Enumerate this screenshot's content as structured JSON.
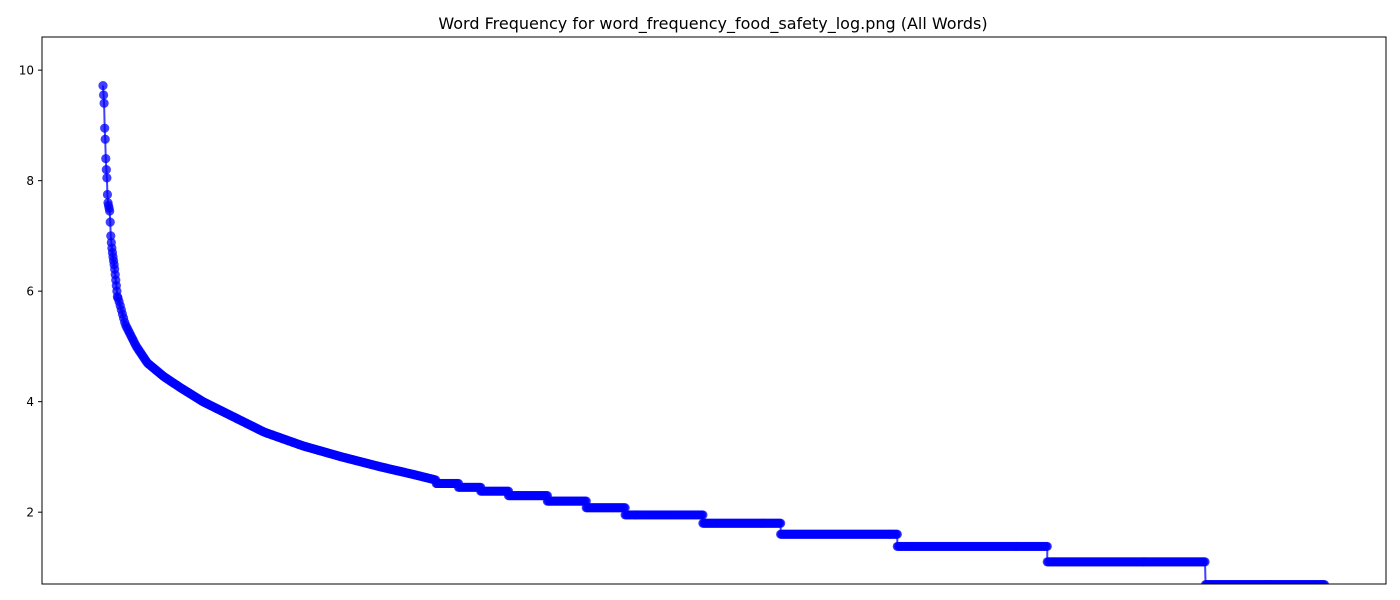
{
  "chart_data": {
    "type": "line",
    "title": "Word Frequency for word_frequency_food_safety_log.png (All Words)",
    "xlabel": "",
    "ylabel": "",
    "ylim": [
      0.7,
      10.6
    ],
    "yticks": [
      2,
      4,
      6,
      8,
      10
    ],
    "x_ticks_shown": false,
    "grid": false,
    "legend": "none",
    "marker": "circle",
    "color": "#0000ff",
    "series": [
      {
        "x_range": [
          0,
          2200
        ],
        "note_for_reading": "",
        "head_values": [
          9.72,
          9.55,
          9.4,
          8.95,
          8.75,
          8.4,
          8.2,
          8.05,
          7.75,
          7.6,
          7.55,
          7.5,
          7.45,
          7.25,
          7.0,
          6.88,
          6.78,
          6.7,
          6.62,
          6.55,
          6.48,
          6.4,
          6.3,
          6.2,
          6.1,
          6.0,
          5.9
        ],
        "curve_points": [
          [
            28,
            5.85
          ],
          [
            40,
            5.4
          ],
          [
            60,
            5.0
          ],
          [
            80,
            4.7
          ],
          [
            110,
            4.45
          ],
          [
            140,
            4.25
          ],
          [
            180,
            4.0
          ],
          [
            230,
            3.75
          ],
          [
            290,
            3.45
          ],
          [
            360,
            3.2
          ],
          [
            430,
            3.0
          ],
          [
            500,
            2.82
          ],
          [
            560,
            2.68
          ],
          [
            600,
            2.58
          ]
        ],
        "steps": [
          [
            600,
            640,
            2.52
          ],
          [
            640,
            680,
            2.45
          ],
          [
            680,
            730,
            2.38
          ],
          [
            730,
            800,
            2.3
          ],
          [
            800,
            870,
            2.2
          ],
          [
            870,
            940,
            2.08
          ],
          [
            940,
            1080,
            1.95
          ],
          [
            1080,
            1220,
            1.8
          ],
          [
            1220,
            1430,
            1.6
          ],
          [
            1430,
            1700,
            1.38
          ],
          [
            1700,
            1985,
            1.1
          ],
          [
            1985,
            2200,
            0.69
          ]
        ]
      }
    ]
  }
}
